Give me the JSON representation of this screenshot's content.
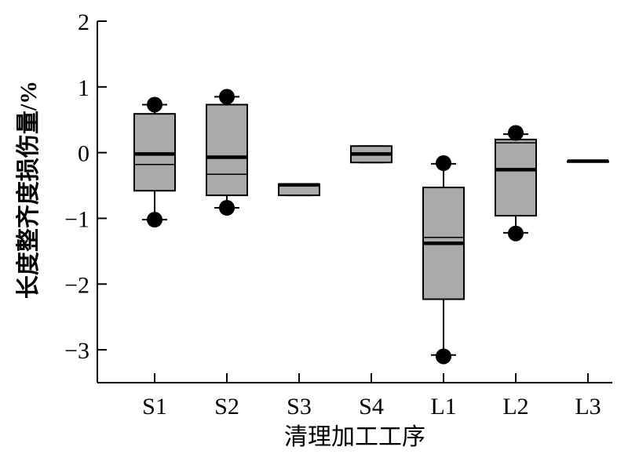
{
  "chart_data": {
    "type": "box",
    "title": "",
    "xlabel": "清理加工工序",
    "ylabel": "长度整齐度损伤量/%",
    "ylim": [
      -3.5,
      2
    ],
    "yticks": [
      {
        "v": 2,
        "label": "2"
      },
      {
        "v": 1,
        "label": "1"
      },
      {
        "v": 0,
        "label": "0"
      },
      {
        "v": -1,
        "label": "−1"
      },
      {
        "v": -2,
        "label": "−2"
      },
      {
        "v": -3,
        "label": "−3"
      }
    ],
    "categories": [
      "S1",
      "S2",
      "S3",
      "S4",
      "L1",
      "L2",
      "L3"
    ],
    "boxes": [
      {
        "category": "S1",
        "whisker_low": -1.02,
        "q1": -0.58,
        "median": -0.18,
        "mean": -0.02,
        "q3": 0.59,
        "whisker_high": 0.73,
        "outliers": [
          0.73,
          -1.02
        ]
      },
      {
        "category": "S2",
        "whisker_low": -0.84,
        "q1": -0.65,
        "median": -0.33,
        "mean": -0.07,
        "q3": 0.73,
        "whisker_high": 0.85,
        "outliers": [
          0.85,
          -0.84
        ]
      },
      {
        "category": "S3",
        "whisker_low": -0.65,
        "q1": -0.65,
        "median": -0.49,
        "mean": -0.49,
        "q3": -0.48,
        "whisker_high": -0.48,
        "outliers": []
      },
      {
        "category": "S4",
        "whisker_low": -0.15,
        "q1": -0.15,
        "median": -0.02,
        "mean": -0.02,
        "q3": 0.1,
        "whisker_high": 0.1,
        "outliers": []
      },
      {
        "category": "L1",
        "whisker_low": -3.08,
        "q1": -2.23,
        "median": -1.29,
        "mean": -1.38,
        "q3": -0.53,
        "whisker_high": -0.17,
        "outliers": [
          -0.16,
          -3.1
        ]
      },
      {
        "category": "L2",
        "whisker_low": -1.22,
        "q1": -0.96,
        "median": 0.15,
        "mean": -0.26,
        "q3": 0.2,
        "whisker_high": 0.28,
        "outliers": [
          0.3,
          -1.23
        ]
      },
      {
        "category": "L3",
        "whisker_low": -0.13,
        "q1": -0.13,
        "median": -0.13,
        "mean": -0.13,
        "q3": -0.13,
        "whisker_high": -0.13,
        "outliers": []
      }
    ],
    "colors": {
      "box_fill": "#aaaaaa",
      "stroke": "#000000",
      "background": "#ffffff"
    },
    "grid": false,
    "legend": "none"
  }
}
